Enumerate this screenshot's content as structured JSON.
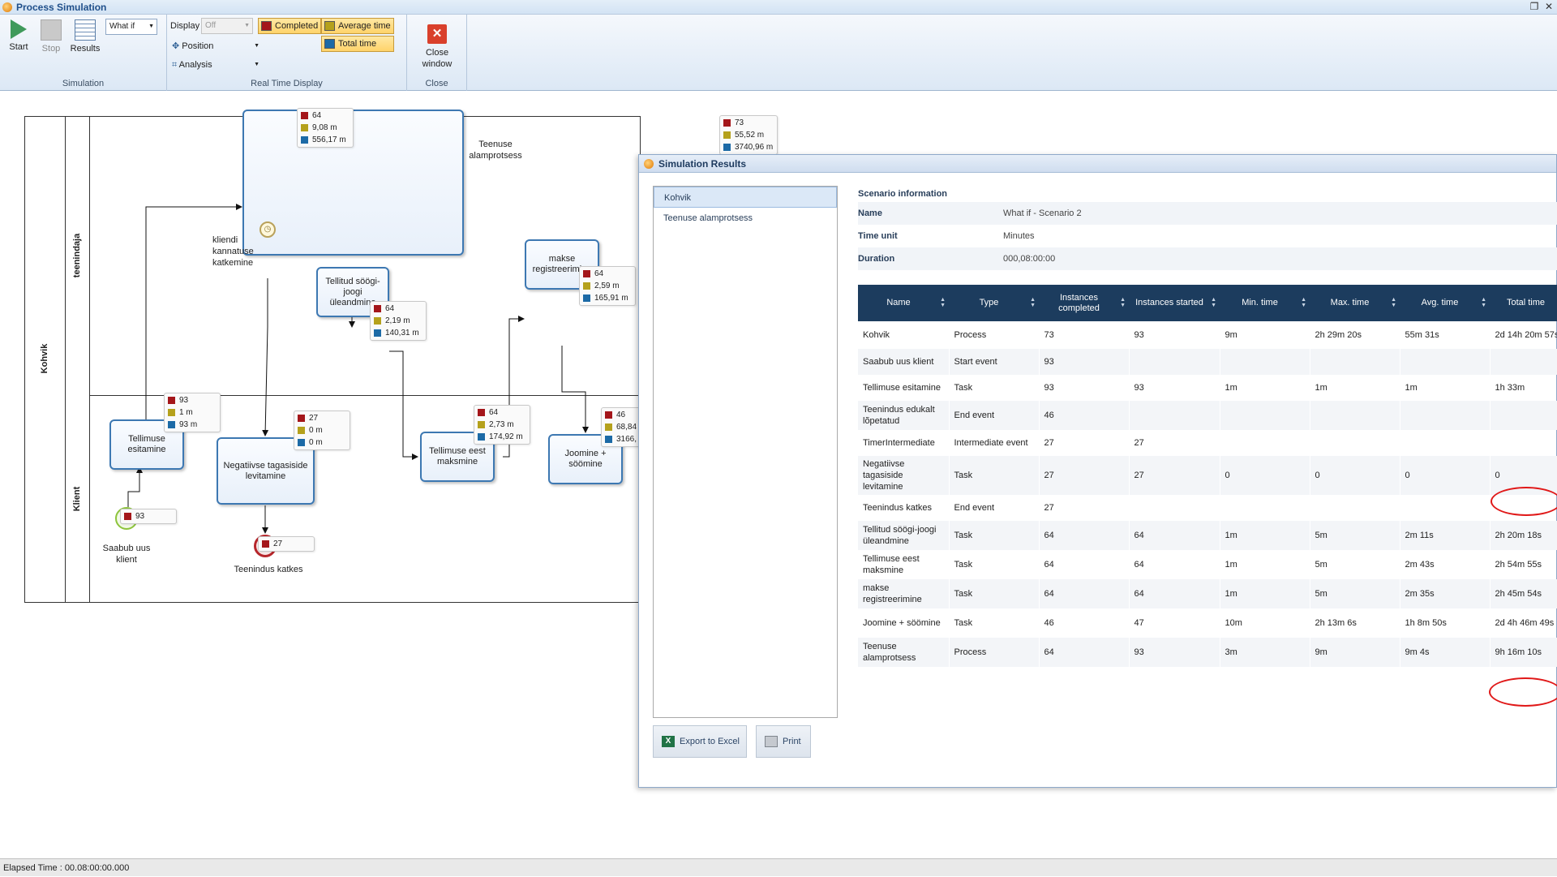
{
  "window": {
    "title": "Process Simulation"
  },
  "ribbon": {
    "start_label": "Start",
    "stop_label": "Stop",
    "results_label": "Results",
    "scenario_value": "What if",
    "simulation_group": "Simulation",
    "display_label": "Display",
    "display_value": "Off",
    "position_label": "Position",
    "analysis_label": "Analysis",
    "completed_label": "Completed",
    "average_label": "Average time",
    "total_label": "Total time",
    "realtime_group": "Real Time Display",
    "close_label": "Close window",
    "close_group": "Close"
  },
  "diagram": {
    "pool": "Kohvik",
    "lane_top": "teenindaja",
    "lane_bottom": "Klient",
    "tasks": {
      "subprocess": "Teenuse alamprotsess",
      "tellitud": "Tellitud söögi-joogi üleandmine",
      "makse": "makse registreerimine",
      "tellimuse_esitamine": "Tellimuse esitamine",
      "negatiivse": "Negatiivse tagasiside levitamine",
      "maksmine": "Tellimuse eest maksmine",
      "joomine": "Joomine + söömine"
    },
    "events": {
      "start": "Saabub uus klient",
      "end": "Teenindus katkes",
      "timer": "kliendi kannatuse katkemine"
    },
    "stats": {
      "subprocess": [
        "64",
        "9,08 m",
        "556,17 m"
      ],
      "pool": [
        "73",
        "55,52 m",
        "3740,96 m"
      ],
      "tellitud": [
        "64",
        "2,19 m",
        "140,31 m"
      ],
      "makse": [
        "64",
        "2,59 m",
        "165,91 m"
      ],
      "tellimuse_esitamine": [
        "93",
        "1 m",
        "93 m"
      ],
      "negatiivse": [
        "27",
        "0 m",
        "0 m"
      ],
      "maksmine": [
        "64",
        "2,73 m",
        "174,92 m"
      ],
      "joomine": [
        "46",
        "68,84",
        "3166,"
      ],
      "start": [
        "93"
      ],
      "end": [
        "27"
      ]
    }
  },
  "results": {
    "title": "Simulation Results",
    "tree": [
      "Kohvik",
      "Teenuse alamprotsess"
    ],
    "export_label": "Export to Excel",
    "print_label": "Print",
    "scenario_header": "Scenario information",
    "scenario": [
      {
        "k": "Name",
        "v": "What if - Scenario 2"
      },
      {
        "k": "Time unit",
        "v": "Minutes"
      },
      {
        "k": "Duration",
        "v": "000,08:00:00"
      }
    ],
    "columns": [
      "Name",
      "Type",
      "Instances completed",
      "Instances started",
      "Min. time",
      "Max. time",
      "Avg. time",
      "Total time"
    ],
    "rows": [
      [
        "Kohvik",
        "Process",
        "73",
        "93",
        "9m",
        "2h 29m 20s",
        "55m 31s",
        "2d 14h 20m 57s"
      ],
      [
        "Saabub uus klient",
        "Start event",
        "93",
        "",
        "",
        "",
        "",
        ""
      ],
      [
        "Tellimuse esitamine",
        "Task",
        "93",
        "93",
        "1m",
        "1m",
        "1m",
        "1h 33m"
      ],
      [
        "Teenindus edukalt lõpetatud",
        "End event",
        "46",
        "",
        "",
        "",
        "",
        ""
      ],
      [
        "TimerIntermediate",
        "Intermediate event",
        "27",
        "27",
        "",
        "",
        "",
        ""
      ],
      [
        "Negatiivse tagasiside levitamine",
        "Task",
        "27",
        "27",
        "0",
        "0",
        "0",
        "0"
      ],
      [
        "Teenindus katkes",
        "End event",
        "27",
        "",
        "",
        "",
        "",
        ""
      ],
      [
        "Tellitud söögi-joogi üleandmine",
        "Task",
        "64",
        "64",
        "1m",
        "5m",
        "2m 11s",
        "2h 20m 18s"
      ],
      [
        "Tellimuse eest maksmine",
        "Task",
        "64",
        "64",
        "1m",
        "5m",
        "2m 43s",
        "2h 54m 55s"
      ],
      [
        "makse registreerimine",
        "Task",
        "64",
        "64",
        "1m",
        "5m",
        "2m 35s",
        "2h 45m 54s"
      ],
      [
        "Joomine + söömine",
        "Task",
        "46",
        "47",
        "10m",
        "2h 13m 6s",
        "1h 8m 50s",
        "2d 4h 46m 49s"
      ],
      [
        "Teenuse alamprotsess",
        "Process",
        "64",
        "93",
        "3m",
        "9m",
        "9m 4s",
        "9h 16m 10s"
      ]
    ]
  },
  "status": {
    "elapsed": "Elapsed Time :    00.08:00:00.000"
  },
  "colors": {
    "completed": "#a4161a",
    "average": "#b5a11c",
    "total": "#1c6aa6"
  }
}
